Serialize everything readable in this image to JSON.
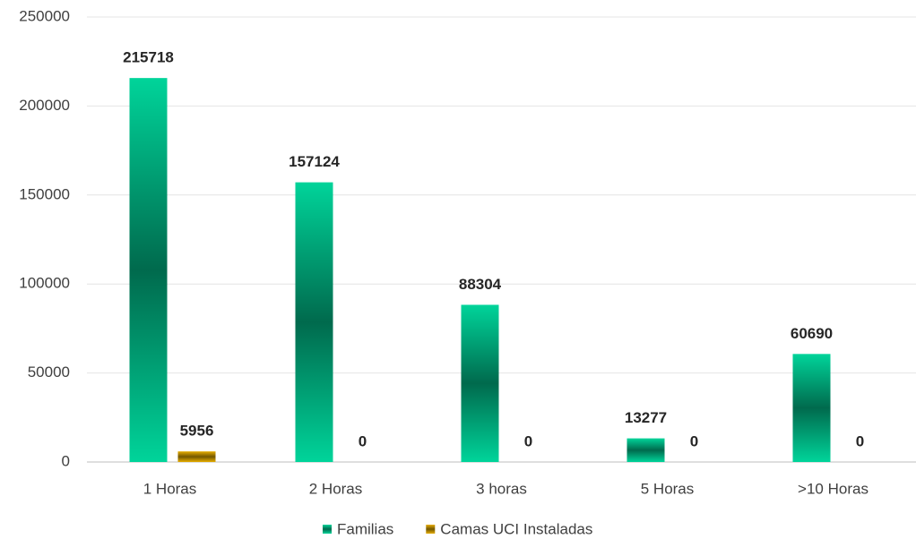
{
  "chart_data": {
    "type": "bar",
    "categories": [
      "1 Horas",
      "2 Horas",
      "3 horas",
      "5 Horas",
      ">10 Horas"
    ],
    "series": [
      {
        "name": "Familias",
        "color": "#00d49a",
        "values": [
          215718,
          157124,
          88304,
          13277,
          60690
        ]
      },
      {
        "name": "Camas UCI Instaladas",
        "color": "#e6ad00",
        "values": [
          5956,
          0,
          0,
          0,
          0
        ]
      }
    ],
    "ylim": [
      0,
      250000
    ],
    "yticks": [
      0,
      50000,
      100000,
      150000,
      200000,
      250000
    ],
    "grid": true,
    "legend": "bottom"
  }
}
